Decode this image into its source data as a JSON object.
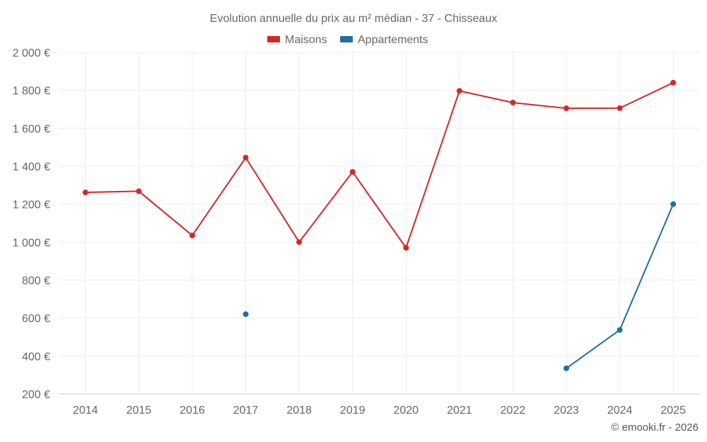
{
  "chart_data": {
    "type": "line",
    "title": "Evolution annuelle du prix au m² médian - 37 - Chisseaux",
    "categories": [
      "2014",
      "2015",
      "2016",
      "2017",
      "2018",
      "2019",
      "2020",
      "2021",
      "2022",
      "2023",
      "2024",
      "2025"
    ],
    "series": [
      {
        "name": "Maisons",
        "color": "#d62728",
        "values": [
          1262,
          1268,
          1035,
          1445,
          1000,
          1370,
          970,
          1797,
          1735,
          1705,
          1706,
          1840
        ]
      },
      {
        "name": "Appartements",
        "color": "#1f6f9f",
        "values": [
          null,
          null,
          null,
          620,
          null,
          null,
          null,
          null,
          null,
          335,
          537,
          1200
        ]
      }
    ],
    "yticks": [
      200,
      400,
      600,
      800,
      1000,
      1200,
      1400,
      1600,
      1800,
      2000
    ],
    "ytick_labels": [
      "200 €",
      "400 €",
      "600 €",
      "800 €",
      "1 000 €",
      "1 200 €",
      "1 400 €",
      "1 600 €",
      "1 800 €",
      "2 000 €"
    ],
    "ylim": [
      200,
      2000
    ],
    "xlabel": "",
    "ylabel": "",
    "grid": true,
    "legend_position": "top-center"
  },
  "credit": "© emooki.fr - 2026"
}
